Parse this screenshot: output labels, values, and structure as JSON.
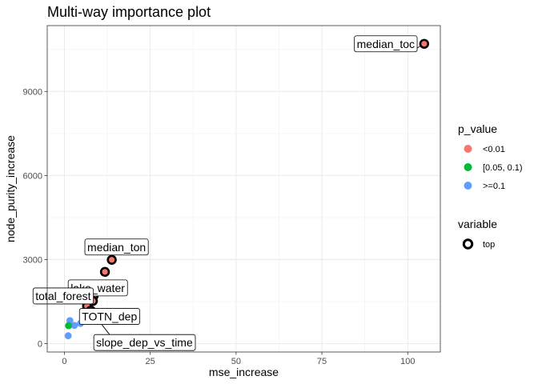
{
  "chart_data": {
    "type": "scatter",
    "title": "Multi-way importance plot",
    "xlabel": "mse_increase",
    "ylabel": "node_purity_increase",
    "xlim": [
      -5,
      109.5
    ],
    "ylim": [
      -300,
      11350
    ],
    "x_ticks": [
      "0",
      "25",
      "50",
      "75",
      "100"
    ],
    "x_tick_values": [
      0,
      25,
      50,
      75,
      100
    ],
    "y_ticks": [
      "0",
      "3000",
      "6000",
      "9000"
    ],
    "y_tick_values": [
      0,
      3000,
      6000,
      9000
    ],
    "grid": true,
    "legend_position": "right",
    "legend": {
      "color_title": "p_value",
      "color_entries": [
        {
          "label": "<0.01",
          "color": "#F8766D"
        },
        {
          "label": "[0.05, 0.1)",
          "color": "#00BA38"
        },
        {
          "label": ">=0.1",
          "color": "#619CFF"
        }
      ],
      "shape_title": "variable",
      "shape_entries": [
        {
          "label": "top"
        }
      ]
    },
    "points": [
      {
        "x": 104.8,
        "y": 10700,
        "p_value": "<0.01",
        "top": true,
        "label": "median_toc"
      },
      {
        "x": 13.8,
        "y": 2990,
        "p_value": "<0.01",
        "top": true,
        "label": "median_ton"
      },
      {
        "x": 11.8,
        "y": 2560,
        "p_value": "<0.01",
        "top": true,
        "label": "lake_water"
      },
      {
        "x": 8.5,
        "y": 1700,
        "p_value": "<0.01",
        "top": true,
        "label": "total_forest"
      },
      {
        "x": 8.3,
        "y": 1520,
        "p_value": "<0.01",
        "top": true,
        "label": ""
      },
      {
        "x": 6.6,
        "y": 1340,
        "p_value": "<0.01",
        "top": true,
        "label": "TOTN_dep"
      },
      {
        "x": 7.7,
        "y": 1180,
        "p_value": "<0.01",
        "top": true,
        "label": "slope_dep_vs_time"
      },
      {
        "x": 1.6,
        "y": 820,
        "p_value": ">=0.1",
        "top": false,
        "label": ""
      },
      {
        "x": 4.7,
        "y": 720,
        "p_value": ">=0.1",
        "top": false,
        "label": ""
      },
      {
        "x": 2.9,
        "y": 650,
        "p_value": ">=0.1",
        "top": false,
        "label": ""
      },
      {
        "x": 1.2,
        "y": 640,
        "p_value": "[0.05, 0.1)",
        "top": false,
        "label": ""
      },
      {
        "x": 1.1,
        "y": 280,
        "p_value": ">=0.1",
        "top": false,
        "label": ""
      }
    ]
  }
}
